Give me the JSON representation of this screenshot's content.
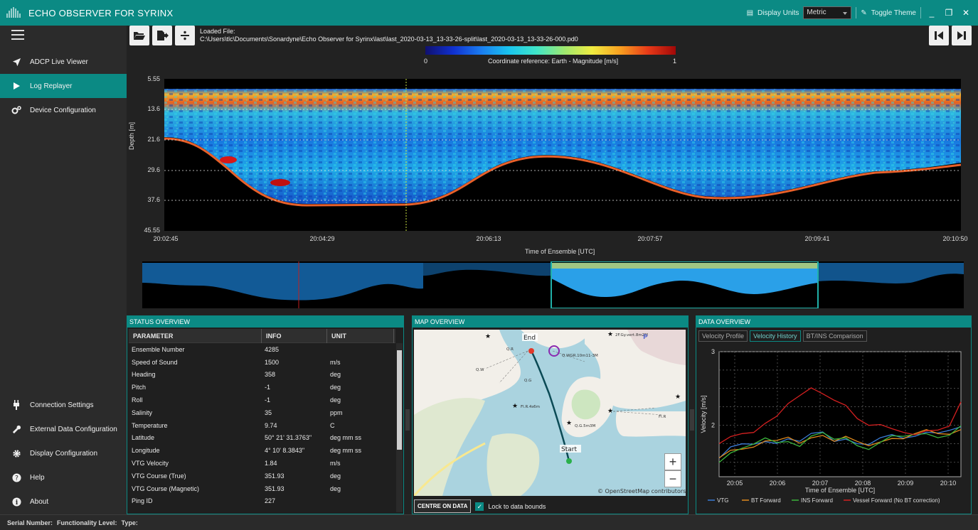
{
  "app": {
    "title": "ECHO OBSERVER FOR SYRINX",
    "display_units_label": "Display Units",
    "display_units_value": "Metric",
    "toggle_theme_label": "Toggle Theme",
    "minimize": "_",
    "restore": "❐",
    "close": "✕"
  },
  "sidebar": {
    "top_items": [
      {
        "label": "ADCP Live Viewer",
        "icon": "send-icon"
      },
      {
        "label": "Log Replayer",
        "icon": "play-icon",
        "active": true
      },
      {
        "label": "Device Configuration",
        "icon": "gears-icon"
      }
    ],
    "bottom_items": [
      {
        "label": "Connection Settings",
        "icon": "plug-icon"
      },
      {
        "label": "External Data Configuration",
        "icon": "wrench-icon"
      },
      {
        "label": "Display Configuration",
        "icon": "gear-icon"
      },
      {
        "label": "Help",
        "icon": "question-icon"
      },
      {
        "label": "About",
        "icon": "info-icon"
      }
    ]
  },
  "file": {
    "loaded_label": "Loaded File:",
    "path": "C:\\Users\\tlc\\Documents\\Sonardyne\\Echo Observer for Syrinx\\last\\last_2020-03-13_13-33-26-split\\last_2020-03-13_13-33-26-000.pd0"
  },
  "echogram": {
    "colorbar_min": "0",
    "colorbar_max": "1",
    "colorbar_label": "Coordinate reference: Earth - Magnitude [m/s]",
    "y_ticks": [
      "5.55",
      "13.6",
      "21.6",
      "29.6",
      "37.6",
      "45.55"
    ],
    "y_label": "Depth [m]",
    "x_ticks": [
      "20:02:45",
      "20:04:29",
      "20:06:13",
      "20:07:57",
      "20:09:41",
      "20:10:50"
    ],
    "x_label": "Time of Ensemble [UTC]"
  },
  "status": {
    "title": "STATUS OVERVIEW",
    "headers": [
      "PARAMETER",
      "INFO",
      "UNIT"
    ],
    "rows": [
      [
        "Ensemble Number",
        "4285",
        ""
      ],
      [
        "Speed of Sound",
        "1500",
        "m/s"
      ],
      [
        "Heading",
        "358",
        "deg"
      ],
      [
        "Pitch",
        "-1",
        "deg"
      ],
      [
        "Roll",
        "-1",
        "deg"
      ],
      [
        "Salinity",
        "35",
        "ppm"
      ],
      [
        "Temperature",
        "9.74",
        "C"
      ],
      [
        "Latitude",
        "50° 21' 31.3763\"",
        "deg mm ss"
      ],
      [
        "Longitude",
        "4° 10' 8.3843\"",
        "deg mm ss"
      ],
      [
        "VTG Velocity",
        "1.84",
        "m/s"
      ],
      [
        "VTG Course (True)",
        "351.93",
        "deg"
      ],
      [
        "VTG Course (Magnetic)",
        "351.93",
        "deg"
      ],
      [
        "Ping ID",
        "227",
        ""
      ]
    ]
  },
  "map": {
    "title": "MAP OVERVIEW",
    "end_label": "End",
    "start_label": "Start",
    "attribution": "© OpenStreetMap contributors",
    "centre_button": "CENTRE ON DATA",
    "lock_label": "Lock to data bounds",
    "zoom_in": "+",
    "zoom_out": "−",
    "marks": [
      "Q.R",
      "Q.W",
      "Q.G",
      "Fl.R.4s6m",
      "Q.G.5m3M",
      "Q.WGR.10m11-3M",
      "2F.Gy.vert.8m2M",
      "Fl.R",
      "P"
    ]
  },
  "data": {
    "title": "DATA OVERVIEW",
    "tabs": [
      "Velocity Profile",
      "Velocity History",
      "BT/INS Comparison"
    ],
    "active_tab": 1,
    "y_label": "Velocity [m/s]",
    "x_label": "Time of Ensemble [UTC]",
    "legend": [
      "VTG",
      "BT Forward",
      "INS Forward",
      "Vessel Forward (No BT correction)"
    ]
  },
  "chart_data": {
    "type": "line",
    "x_ticks": [
      "20:05",
      "20:06",
      "20:07",
      "20:08",
      "20:09",
      "20:10"
    ],
    "y_ticks": [
      "3",
      "2"
    ],
    "ylim": [
      1.3,
      3.0
    ],
    "grid": true,
    "legend_position": "bottom",
    "colors": {
      "VTG": "#3a7bd5",
      "BT Forward": "#e08a1e",
      "INS Forward": "#3cb43c",
      "Vessel Forward (No BT correction)": "#d42020"
    },
    "series": [
      {
        "name": "VTG",
        "values": [
          1.55,
          1.68,
          1.72,
          1.74,
          1.8,
          1.78,
          1.82,
          1.76,
          1.86,
          1.9,
          1.8,
          1.84,
          1.76,
          1.72,
          1.8,
          1.86,
          1.84,
          1.88,
          1.92,
          1.88,
          1.9,
          1.96
        ]
      },
      {
        "name": "BT Forward",
        "values": [
          1.53,
          1.66,
          1.7,
          1.73,
          1.79,
          1.77,
          1.81,
          1.75,
          1.85,
          1.89,
          1.79,
          1.83,
          1.75,
          1.71,
          1.79,
          1.85,
          1.83,
          1.87,
          1.91,
          1.87,
          1.89,
          1.97
        ]
      },
      {
        "name": "INS Forward",
        "values": [
          1.52,
          1.65,
          1.69,
          1.72,
          1.8,
          1.76,
          1.8,
          1.74,
          1.86,
          1.88,
          1.78,
          1.82,
          1.74,
          1.7,
          1.78,
          1.84,
          1.82,
          1.86,
          1.9,
          1.86,
          1.88,
          1.98
        ]
      },
      {
        "name": "Vessel Forward (No BT correction)",
        "values": [
          1.75,
          1.82,
          1.86,
          1.9,
          2.05,
          2.15,
          2.3,
          2.38,
          2.48,
          2.42,
          2.36,
          2.3,
          2.1,
          1.98,
          1.98,
          1.94,
          1.92,
          1.9,
          1.94,
          1.92,
          1.96,
          2.3
        ]
      }
    ]
  },
  "statusbar": {
    "serial_label": "Serial Number:",
    "functionality_label": "Functionality Level:",
    "type_label": "Type:"
  }
}
